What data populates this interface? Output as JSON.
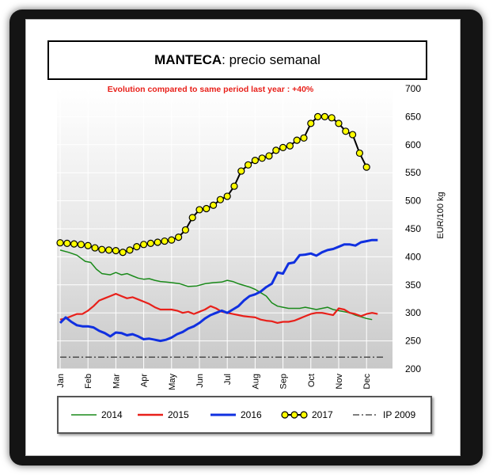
{
  "header": {
    "title_bold": "MANTECA",
    "title_rest": ": precio semanal"
  },
  "chart_data": {
    "type": "line",
    "annotation": "Evolution compared to same period last year : +40%",
    "ylabel": "EUR/100 kg",
    "ylim": [
      200,
      700
    ],
    "yticks": [
      200,
      250,
      300,
      350,
      400,
      450,
      500,
      550,
      600,
      650,
      700
    ],
    "categories": [
      "Jan",
      "Feb",
      "Mar",
      "Apr",
      "May",
      "Jun",
      "Jul",
      "Aug",
      "Sep",
      "Oct",
      "Nov",
      "Dec"
    ],
    "grid": true,
    "legend_position": "bottom",
    "colors": {
      "2014": "#1a8a1a",
      "2015": "#e8201a",
      "2016": "#1030e0",
      "2017": "#000000",
      "2017_marker": "#ffff00",
      "IP 2009": "#333333"
    },
    "series": [
      {
        "name": "2014",
        "values": [
          [
            0,
            412
          ],
          [
            0.3,
            408
          ],
          [
            0.6,
            403
          ],
          [
            0.9,
            392
          ],
          [
            1.1,
            390
          ],
          [
            1.3,
            378
          ],
          [
            1.5,
            370
          ],
          [
            1.8,
            368
          ],
          [
            2.0,
            372
          ],
          [
            2.2,
            368
          ],
          [
            2.4,
            370
          ],
          [
            2.6,
            366
          ],
          [
            2.8,
            362
          ],
          [
            3.0,
            360
          ],
          [
            3.2,
            361
          ],
          [
            3.4,
            358
          ],
          [
            3.6,
            356
          ],
          [
            3.8,
            355
          ],
          [
            4.0,
            354
          ],
          [
            4.3,
            352
          ],
          [
            4.6,
            347
          ],
          [
            4.9,
            348
          ],
          [
            5.2,
            352
          ],
          [
            5.5,
            354
          ],
          [
            5.8,
            355
          ],
          [
            6.0,
            358
          ],
          [
            6.2,
            356
          ],
          [
            6.4,
            352
          ],
          [
            6.6,
            349
          ],
          [
            6.8,
            346
          ],
          [
            7.0,
            342
          ],
          [
            7.2,
            336
          ],
          [
            7.4,
            330
          ],
          [
            7.6,
            318
          ],
          [
            7.8,
            312
          ],
          [
            8.0,
            310
          ],
          [
            8.2,
            308
          ],
          [
            8.4,
            308
          ],
          [
            8.6,
            308
          ],
          [
            8.8,
            310
          ],
          [
            9.0,
            308
          ],
          [
            9.2,
            306
          ],
          [
            9.4,
            308
          ],
          [
            9.6,
            310
          ],
          [
            9.8,
            306
          ],
          [
            10.0,
            304
          ],
          [
            10.2,
            302
          ],
          [
            10.4,
            300
          ],
          [
            10.6,
            296
          ],
          [
            10.8,
            293
          ],
          [
            11.0,
            290
          ],
          [
            11.2,
            288
          ]
        ]
      },
      {
        "name": "2015",
        "values": [
          [
            0,
            288
          ],
          [
            0.2,
            290
          ],
          [
            0.4,
            294
          ],
          [
            0.6,
            298
          ],
          [
            0.8,
            298
          ],
          [
            1.0,
            304
          ],
          [
            1.2,
            312
          ],
          [
            1.4,
            322
          ],
          [
            1.6,
            326
          ],
          [
            1.8,
            330
          ],
          [
            2.0,
            334
          ],
          [
            2.2,
            330
          ],
          [
            2.4,
            326
          ],
          [
            2.6,
            328
          ],
          [
            2.8,
            324
          ],
          [
            3.0,
            320
          ],
          [
            3.2,
            316
          ],
          [
            3.4,
            310
          ],
          [
            3.6,
            306
          ],
          [
            3.8,
            306
          ],
          [
            4.0,
            306
          ],
          [
            4.2,
            304
          ],
          [
            4.4,
            300
          ],
          [
            4.6,
            302
          ],
          [
            4.8,
            298
          ],
          [
            5.0,
            302
          ],
          [
            5.2,
            306
          ],
          [
            5.4,
            312
          ],
          [
            5.6,
            308
          ],
          [
            5.8,
            302
          ],
          [
            6.0,
            300
          ],
          [
            6.2,
            298
          ],
          [
            6.4,
            296
          ],
          [
            6.6,
            294
          ],
          [
            6.8,
            293
          ],
          [
            7.0,
            292
          ],
          [
            7.2,
            288
          ],
          [
            7.4,
            286
          ],
          [
            7.6,
            285
          ],
          [
            7.8,
            282
          ],
          [
            8.0,
            284
          ],
          [
            8.2,
            284
          ],
          [
            8.4,
            286
          ],
          [
            8.6,
            290
          ],
          [
            8.8,
            294
          ],
          [
            9.0,
            298
          ],
          [
            9.2,
            300
          ],
          [
            9.4,
            300
          ],
          [
            9.6,
            298
          ],
          [
            9.8,
            296
          ],
          [
            10.0,
            308
          ],
          [
            10.2,
            306
          ],
          [
            10.4,
            300
          ],
          [
            10.6,
            298
          ],
          [
            10.8,
            294
          ],
          [
            11.0,
            298
          ],
          [
            11.2,
            300
          ],
          [
            11.4,
            298
          ]
        ]
      },
      {
        "name": "2016",
        "values": [
          [
            0,
            282
          ],
          [
            0.2,
            292
          ],
          [
            0.4,
            284
          ],
          [
            0.6,
            278
          ],
          [
            0.8,
            276
          ],
          [
            1.0,
            276
          ],
          [
            1.2,
            274
          ],
          [
            1.4,
            268
          ],
          [
            1.6,
            264
          ],
          [
            1.8,
            258
          ],
          [
            2.0,
            265
          ],
          [
            2.2,
            264
          ],
          [
            2.4,
            260
          ],
          [
            2.6,
            262
          ],
          [
            2.8,
            258
          ],
          [
            3.0,
            253
          ],
          [
            3.2,
            254
          ],
          [
            3.4,
            252
          ],
          [
            3.6,
            250
          ],
          [
            3.8,
            252
          ],
          [
            4.0,
            256
          ],
          [
            4.2,
            262
          ],
          [
            4.4,
            266
          ],
          [
            4.6,
            272
          ],
          [
            4.8,
            276
          ],
          [
            5.0,
            282
          ],
          [
            5.2,
            290
          ],
          [
            5.4,
            296
          ],
          [
            5.6,
            300
          ],
          [
            5.8,
            304
          ],
          [
            6.0,
            300
          ],
          [
            6.2,
            306
          ],
          [
            6.4,
            312
          ],
          [
            6.6,
            322
          ],
          [
            6.8,
            330
          ],
          [
            7.0,
            333
          ],
          [
            7.2,
            338
          ],
          [
            7.4,
            346
          ],
          [
            7.6,
            352
          ],
          [
            7.8,
            372
          ],
          [
            8.0,
            370
          ],
          [
            8.2,
            388
          ],
          [
            8.4,
            390
          ],
          [
            8.6,
            403
          ],
          [
            8.8,
            404
          ],
          [
            9.0,
            406
          ],
          [
            9.2,
            402
          ],
          [
            9.4,
            408
          ],
          [
            9.6,
            412
          ],
          [
            9.8,
            414
          ],
          [
            10.0,
            418
          ],
          [
            10.2,
            422
          ],
          [
            10.4,
            422
          ],
          [
            10.6,
            420
          ],
          [
            10.8,
            426
          ],
          [
            11.0,
            428
          ],
          [
            11.2,
            430
          ],
          [
            11.4,
            430
          ]
        ]
      },
      {
        "name": "2017",
        "values": [
          [
            0,
            425
          ],
          [
            0.25,
            424
          ],
          [
            0.5,
            423
          ],
          [
            0.75,
            422
          ],
          [
            1.0,
            420
          ],
          [
            1.25,
            416
          ],
          [
            1.5,
            413
          ],
          [
            1.75,
            412
          ],
          [
            2.0,
            411
          ],
          [
            2.25,
            408
          ],
          [
            2.5,
            412
          ],
          [
            2.75,
            418
          ],
          [
            3.0,
            422
          ],
          [
            3.25,
            424
          ],
          [
            3.5,
            426
          ],
          [
            3.75,
            428
          ],
          [
            4.0,
            430
          ],
          [
            4.25,
            435
          ],
          [
            4.5,
            448
          ],
          [
            4.75,
            470
          ],
          [
            5.0,
            484
          ],
          [
            5.25,
            486
          ],
          [
            5.5,
            492
          ],
          [
            5.75,
            502
          ],
          [
            6.0,
            508
          ],
          [
            6.25,
            526
          ],
          [
            6.5,
            553
          ],
          [
            6.75,
            564
          ],
          [
            7.0,
            572
          ],
          [
            7.25,
            576
          ],
          [
            7.5,
            580
          ],
          [
            7.75,
            590
          ],
          [
            8.0,
            595
          ],
          [
            8.25,
            598
          ],
          [
            8.5,
            608
          ],
          [
            8.75,
            612
          ],
          [
            9.0,
            638
          ],
          [
            9.25,
            650
          ],
          [
            9.5,
            650
          ],
          [
            9.75,
            648
          ],
          [
            10.0,
            638
          ],
          [
            10.25,
            624
          ],
          [
            10.5,
            618
          ],
          [
            10.75,
            585
          ],
          [
            11.0,
            560
          ]
        ]
      },
      {
        "name": "IP 2009",
        "values": [
          [
            0,
            221
          ],
          [
            11.6,
            221
          ]
        ]
      }
    ],
    "legend": [
      "2014",
      "2015",
      "2016",
      "2017",
      "IP 2009"
    ]
  }
}
